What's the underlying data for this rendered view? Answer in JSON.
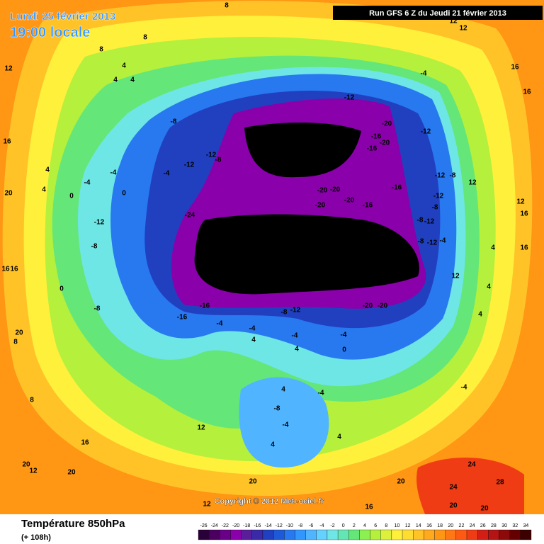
{
  "header": {
    "date": "Lundi 25 février 2013",
    "time": "19:00 locale",
    "run": "Run GFS 6 Z du Jeudi 21 février 2013"
  },
  "copyright": "Copyright © 2012 Meteociel.fr",
  "footer": {
    "title": "Température 850hPa",
    "lead": "(+ 108h)"
  },
  "contour_labels": [
    8,
    8,
    4,
    4,
    4,
    8,
    12,
    12,
    -4,
    16,
    16,
    -12,
    -12,
    -20,
    -24,
    -24,
    -16,
    -20,
    -16,
    -8,
    -12,
    -8,
    -12,
    -33,
    -28,
    -28,
    -20,
    -20,
    -20,
    -20,
    -16,
    -16,
    -12,
    -8,
    12,
    -12,
    -8,
    -8,
    -12,
    -8,
    -12,
    -4,
    -24,
    -24,
    -32,
    -32,
    -28,
    -32,
    -32,
    -32,
    -28,
    -20,
    -20,
    -16,
    -16,
    -8,
    -12,
    -4,
    -4,
    -4,
    -4,
    0,
    0,
    -12,
    -8,
    -8,
    0,
    4,
    4,
    12,
    16,
    20,
    16,
    16,
    20,
    8,
    -4,
    4,
    -4,
    -4,
    4,
    0,
    4,
    -4,
    -8,
    -4,
    4,
    4,
    12,
    8,
    16,
    20,
    20,
    12,
    20,
    20,
    24,
    24,
    28,
    20,
    20,
    16,
    12,
    12,
    16,
    16,
    4,
    4,
    4,
    -4,
    12
  ],
  "scale": {
    "values": [
      -26,
      -24,
      -22,
      -20,
      -18,
      -16,
      -14,
      -12,
      -10,
      -8,
      -6,
      -4,
      -2,
      0,
      2,
      4,
      6,
      8,
      10,
      12,
      14,
      16,
      18,
      20,
      22,
      24,
      26,
      28,
      30,
      32,
      34
    ],
    "colors": [
      "#2a0038",
      "#4b0060",
      "#6a0088",
      "#8a00aa",
      "#5a1e9a",
      "#3a2aa8",
      "#2040c0",
      "#1e5ad8",
      "#2878f0",
      "#3296ff",
      "#50b4ff",
      "#64d2ff",
      "#6ee6e6",
      "#64e6b4",
      "#64e678",
      "#8cf050",
      "#b4f03c",
      "#dcf03c",
      "#fff03c",
      "#ffdc32",
      "#ffc328",
      "#ffaa1e",
      "#ff9614",
      "#ff7814",
      "#ff5a14",
      "#f03c14",
      "#d21e14",
      "#b41414",
      "#8c0a0a",
      "#640000",
      "#3c0000"
    ]
  }
}
